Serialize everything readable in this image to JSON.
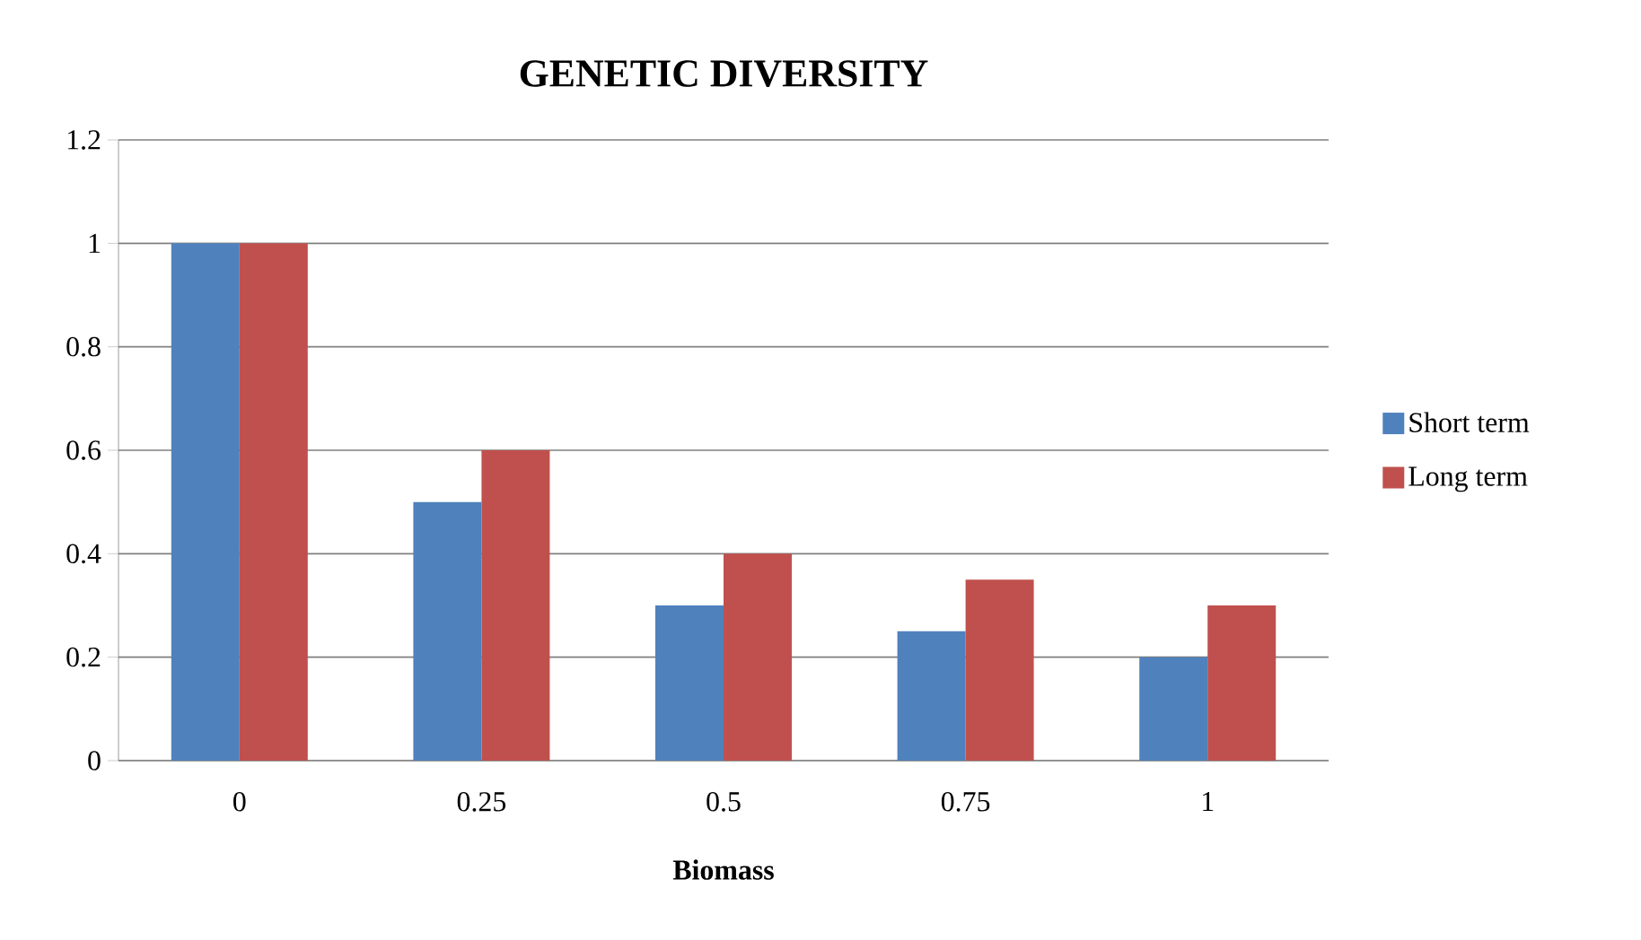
{
  "chart_data": {
    "type": "bar",
    "title": "GENETIC DIVERSITY",
    "xlabel": "Biomass",
    "categories": [
      "0",
      "0.25",
      "0.5",
      "0.75",
      "1"
    ],
    "series": [
      {
        "name": "Short term",
        "color": "#4f81bd",
        "values": [
          1,
          0.5,
          0.3,
          0.25,
          0.2
        ]
      },
      {
        "name": "Long term",
        "color": "#c0504d",
        "values": [
          1,
          0.6,
          0.4,
          0.35,
          0.3
        ]
      }
    ],
    "ylim": [
      0,
      1.2
    ],
    "yticks": [
      0,
      0.2,
      0.4,
      0.6,
      0.8,
      1,
      1.2
    ],
    "grid": "y",
    "legend": "right"
  }
}
